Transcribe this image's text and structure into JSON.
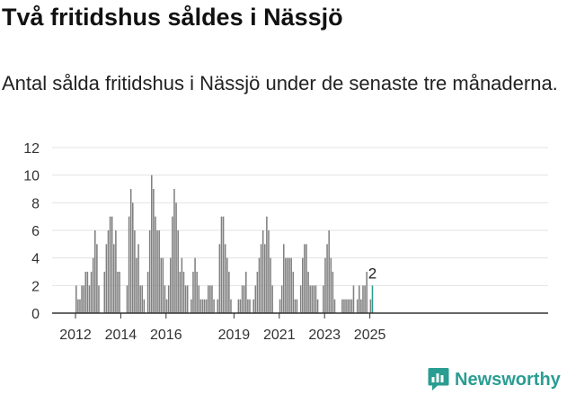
{
  "title": "Två fritidshus såldes i Nässjö",
  "subtitle": "Antal sålda fritidshus i Nässjö under de senaste tre månaderna.",
  "brand": {
    "name": "Newsworthy",
    "color": "#2a9d92"
  },
  "chart_data": {
    "type": "bar",
    "title": "",
    "xlabel": "",
    "ylabel": "",
    "ylim": [
      0,
      12
    ],
    "yticks": [
      0,
      2,
      4,
      6,
      8,
      10,
      12
    ],
    "x_tick_labels": [
      "2012",
      "2014",
      "2016",
      "2019",
      "2021",
      "2023",
      "2025"
    ],
    "grid": "horizontal",
    "bar_color": "#808080",
    "highlight_color": "#2a9d92",
    "start": "2012-01",
    "interval": "month",
    "values": [
      2,
      1,
      1,
      2,
      2,
      3,
      3,
      2,
      3,
      4,
      6,
      5,
      2,
      0,
      0,
      3,
      5,
      6,
      7,
      7,
      5,
      6,
      3,
      3,
      0,
      0,
      0,
      2,
      7,
      9,
      8,
      6,
      4,
      5,
      2,
      2,
      1,
      0,
      3,
      6,
      10,
      9,
      7,
      6,
      6,
      4,
      4,
      2,
      1,
      2,
      4,
      7,
      9,
      8,
      6,
      3,
      4,
      3,
      2,
      2,
      0,
      1,
      3,
      4,
      3,
      2,
      1,
      1,
      1,
      1,
      2,
      2,
      2,
      1,
      0,
      1,
      5,
      7,
      7,
      5,
      4,
      3,
      1,
      0,
      0,
      0,
      1,
      1,
      2,
      2,
      3,
      1,
      1,
      0,
      1,
      2,
      3,
      4,
      5,
      6,
      5,
      7,
      6,
      4,
      2,
      0,
      0,
      0,
      1,
      2,
      5,
      4,
      4,
      4,
      4,
      3,
      1,
      1,
      0,
      2,
      4,
      5,
      5,
      3,
      2,
      2,
      2,
      2,
      1,
      0,
      0,
      2,
      4,
      5,
      6,
      4,
      3,
      1,
      0,
      0,
      0,
      1,
      1,
      1,
      1,
      1,
      1,
      2,
      0,
      1,
      2,
      1,
      2,
      2,
      3,
      0,
      1,
      2
    ],
    "last_value_label": "2"
  }
}
